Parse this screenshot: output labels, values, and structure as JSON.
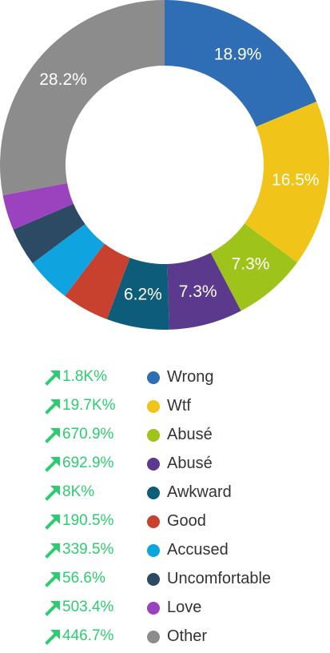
{
  "chart_data": {
    "type": "pie",
    "style": "donut",
    "slices": [
      {
        "name": "Wrong",
        "value": 18.9,
        "label": "18.9%",
        "change": "1.8K%",
        "color": "#2f6db5"
      },
      {
        "name": "Wtf",
        "value": 16.5,
        "label": "16.5%",
        "change": "19.7K%",
        "color": "#f0c419"
      },
      {
        "name": "Abusé",
        "value": 7.3,
        "label": "7.3%",
        "change": "670.9%",
        "color": "#9ec31a"
      },
      {
        "name": "Abusé",
        "value": 7.3,
        "label": "7.3%",
        "change": "692.9%",
        "color": "#5b3a8e"
      },
      {
        "name": "Awkward",
        "value": 6.2,
        "label": "6.2%",
        "change": "8K%",
        "color": "#0d5c7a"
      },
      {
        "name": "Good",
        "value": 4.7,
        "label": "",
        "change": "190.5%",
        "color": "#c8412f"
      },
      {
        "name": "Accused",
        "value": 4.5,
        "label": "",
        "change": "339.5%",
        "color": "#0fa3e0"
      },
      {
        "name": "Uncomfortable",
        "value": 3.8,
        "label": "",
        "change": "56.6%",
        "color": "#2c4a64"
      },
      {
        "name": "Love",
        "value": 3.5,
        "label": "",
        "change": "503.4%",
        "color": "#9b42bf"
      },
      {
        "name": "Other",
        "value": 28.2,
        "label": "28.2%",
        "change": "446.7%",
        "color": "#8c8c8c"
      }
    ],
    "change_color": "#2ecc71",
    "change_icon": "trend-up-arrow-icon",
    "legend_position": "bottom"
  }
}
